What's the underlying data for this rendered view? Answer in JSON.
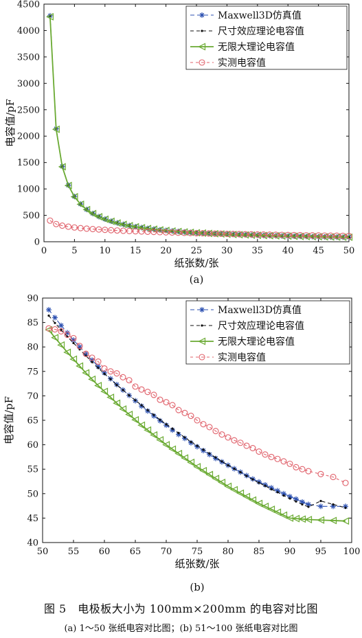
{
  "figure": {
    "caption": "图 5　电极板大小为 100mm×200mm 的电容对比图",
    "subcaption": "(a) 1～50 张纸电容对比图；(b) 51～100 张纸电容对比图"
  },
  "styles": {
    "maxwell": {
      "color": "#2b4fb0",
      "marker": "asterisk",
      "dash": "6,4"
    },
    "size_effect": {
      "color": "#111111",
      "marker": "dot",
      "dash": "5,4"
    },
    "infinite": {
      "color": "#6aaa32",
      "marker": "triangle-left",
      "dash": ""
    },
    "measured": {
      "color": "#e0606a",
      "marker": "circle",
      "dash": "4,4"
    }
  },
  "chart_data": [
    {
      "type": "line",
      "panel_label": "(a)",
      "xlabel": "纸张数/张",
      "ylabel": "电容值/pF",
      "xlim": [
        0,
        50
      ],
      "ylim": [
        0,
        4500
      ],
      "xticks": [
        0,
        5,
        10,
        15,
        20,
        25,
        30,
        35,
        40,
        45,
        50
      ],
      "yticks": [
        0,
        500,
        1000,
        1500,
        2000,
        2500,
        3000,
        3500,
        4000,
        4500
      ],
      "legend_position": "top-right",
      "x": [
        1,
        2,
        3,
        4,
        5,
        6,
        7,
        8,
        9,
        10,
        11,
        12,
        13,
        14,
        15,
        16,
        17,
        18,
        19,
        20,
        21,
        22,
        23,
        24,
        25,
        26,
        27,
        28,
        29,
        30,
        31,
        32,
        33,
        34,
        35,
        36,
        37,
        38,
        39,
        40,
        41,
        42,
        43,
        44,
        45,
        46,
        47,
        48,
        49,
        50
      ],
      "series": [
        {
          "name": "Maxwell3D仿真值",
          "style": "maxwell",
          "values": [
            4280,
            2140,
            1427,
            1070,
            856,
            713,
            611,
            535,
            476,
            428,
            389,
            357,
            329,
            306,
            285,
            268,
            252,
            238,
            225,
            214,
            204,
            195,
            186,
            179,
            171,
            165,
            159,
            153,
            148,
            143,
            138,
            134,
            130,
            126,
            122,
            119,
            116,
            113,
            110,
            107,
            104,
            102,
            100,
            97,
            95,
            93,
            91,
            89,
            87,
            86
          ]
        },
        {
          "name": "尺寸效应理论电容值",
          "style": "size_effect",
          "values": [
            4280,
            2140,
            1427,
            1070,
            856,
            713,
            611,
            535,
            476,
            428,
            389,
            357,
            329,
            306,
            285,
            268,
            252,
            238,
            225,
            214,
            204,
            195,
            186,
            179,
            171,
            165,
            159,
            153,
            148,
            143,
            138,
            134,
            130,
            126,
            122,
            119,
            116,
            113,
            110,
            107,
            104,
            102,
            100,
            97,
            95,
            93,
            91,
            89,
            87,
            86
          ]
        },
        {
          "name": "无限大理论电容值",
          "style": "infinite",
          "values": [
            4260,
            2130,
            1420,
            1065,
            852,
            710,
            609,
            533,
            473,
            426,
            387,
            355,
            328,
            304,
            284,
            266,
            251,
            237,
            224,
            213,
            203,
            194,
            185,
            178,
            170,
            164,
            158,
            152,
            147,
            142,
            137,
            133,
            129,
            125,
            122,
            118,
            115,
            112,
            109,
            107,
            104,
            101,
            99,
            97,
            95,
            93,
            91,
            89,
            87,
            85
          ]
        },
        {
          "name": "实测电容值",
          "style": "measured",
          "values": [
            400,
            335,
            305,
            285,
            270,
            258,
            248,
            240,
            232,
            225,
            219,
            213,
            208,
            203,
            198,
            194,
            190,
            186,
            182,
            178,
            175,
            172,
            168,
            165,
            162,
            160,
            157,
            154,
            152,
            149,
            147,
            145,
            142,
            140,
            138,
            136,
            134,
            132,
            130,
            128,
            126,
            124,
            122,
            121,
            119,
            117,
            115,
            114,
            112,
            110
          ]
        }
      ]
    },
    {
      "type": "line",
      "panel_label": "(b)",
      "xlabel": "纸张数/张",
      "ylabel": "电容值/pF",
      "xlim": [
        50,
        100
      ],
      "ylim": [
        40,
        90
      ],
      "xticks": [
        50,
        55,
        60,
        65,
        70,
        75,
        80,
        85,
        90,
        95,
        100
      ],
      "yticks": [
        40,
        45,
        50,
        55,
        60,
        65,
        70,
        75,
        80,
        85,
        90
      ],
      "legend_position": "top-right",
      "x": [
        51,
        52,
        53,
        54,
        55,
        56,
        57,
        58,
        59,
        60,
        61,
        62,
        63,
        64,
        65,
        66,
        67,
        68,
        69,
        70,
        71,
        72,
        73,
        74,
        75,
        76,
        77,
        78,
        79,
        80,
        81,
        82,
        83,
        84,
        85,
        86,
        87,
        88,
        89,
        90,
        91,
        92,
        93,
        95,
        97,
        99
      ],
      "series": [
        {
          "name": "Maxwell3D仿真值",
          "style": "maxwell",
          "values": [
            87.6,
            86.0,
            84.4,
            82.9,
            81.4,
            80.0,
            78.6,
            77.3,
            76.0,
            74.7,
            73.5,
            72.3,
            71.2,
            70.1,
            69.0,
            67.9,
            66.9,
            65.9,
            64.9,
            64.0,
            63.0,
            62.1,
            61.3,
            60.4,
            59.6,
            58.8,
            58.0,
            57.2,
            56.5,
            55.8,
            55.1,
            54.4,
            53.7,
            53.0,
            52.4,
            51.8,
            51.2,
            50.6,
            50.0,
            49.4,
            48.9,
            48.3,
            47.8,
            47.4,
            47.4,
            47.4
          ]
        },
        {
          "name": "尺寸效应理论电容值",
          "style": "size_effect",
          "values": [
            86.4,
            84.9,
            83.5,
            82.1,
            80.8,
            79.5,
            78.2,
            76.9,
            75.7,
            74.5,
            73.4,
            72.2,
            71.2,
            70.1,
            69.1,
            68.1,
            67.1,
            66.1,
            65.1,
            64.2,
            63.3,
            62.4,
            61.5,
            60.6,
            59.8,
            59.0,
            58.2,
            57.4,
            56.6,
            55.8,
            55.1,
            54.4,
            53.6,
            52.9,
            52.2,
            51.6,
            50.9,
            50.3,
            49.6,
            49.0,
            48.4,
            47.8,
            47.3,
            48.5,
            47.8,
            47.1
          ]
        },
        {
          "name": "无限大理论电容值",
          "style": "infinite",
          "values": [
            83.5,
            81.9,
            80.4,
            78.9,
            77.5,
            76.1,
            74.7,
            73.4,
            72.1,
            70.9,
            69.7,
            68.5,
            67.3,
            66.2,
            65.1,
            64.0,
            63.0,
            62.0,
            61.0,
            60.0,
            59.1,
            58.2,
            57.3,
            56.4,
            55.5,
            54.7,
            53.9,
            53.1,
            52.3,
            51.5,
            50.8,
            50.1,
            49.4,
            48.7,
            48.0,
            47.4,
            46.8,
            46.2,
            45.6,
            45.0,
            44.9,
            44.8,
            44.7,
            44.6,
            44.5,
            44.4
          ]
        },
        {
          "name": "实测电容值",
          "style": "measured",
          "values": [
            83.8,
            83.6,
            83.2,
            82.5,
            81.8,
            80.2,
            78.6,
            77.8,
            77.0,
            75.6,
            75.0,
            74.6,
            73.8,
            73.2,
            71.9,
            71.3,
            70.8,
            70.2,
            69.2,
            68.7,
            68.1,
            67.1,
            66.5,
            65.9,
            65.0,
            64.2,
            63.6,
            62.8,
            62.1,
            61.5,
            60.9,
            60.4,
            59.8,
            59.3,
            58.6,
            58.0,
            57.5,
            57.1,
            56.6,
            56.1,
            55.4,
            55.0,
            54.6,
            54.0,
            53.4,
            52.2
          ]
        }
      ]
    }
  ]
}
